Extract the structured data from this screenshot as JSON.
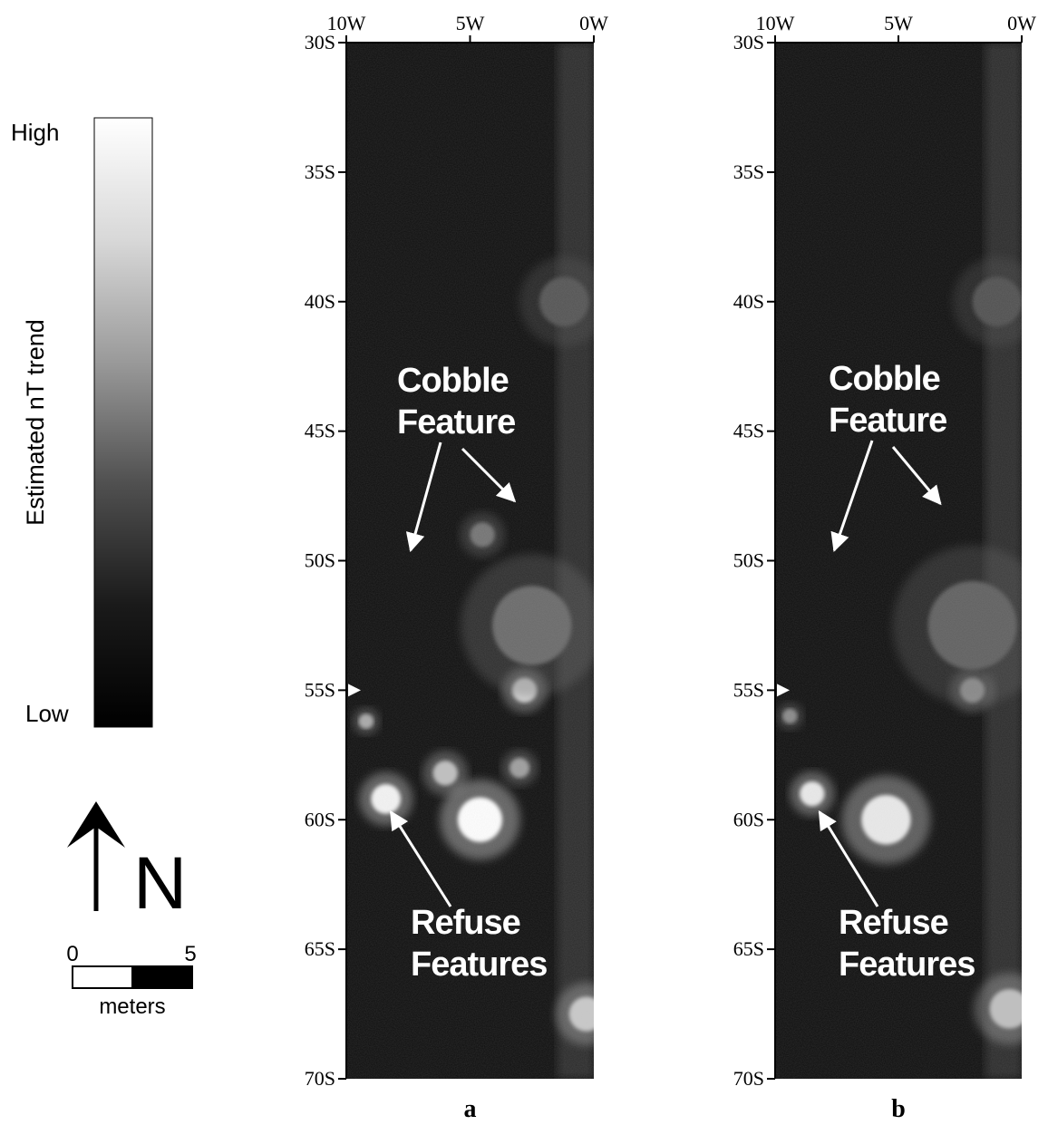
{
  "legend": {
    "high_label": "High",
    "low_label": "Low",
    "axis_label": "Estimated nT trend",
    "gradient_colors": [
      "#ffffff",
      "#d8d8d8",
      "#9a9a9a",
      "#505050",
      "#1a1a1a",
      "#000000"
    ]
  },
  "north_arrow": {
    "label": "N"
  },
  "scale_bar": {
    "start_label": "0",
    "end_label": "5",
    "units_label": "meters",
    "length_value": 5
  },
  "grid": {
    "x_ticks": [
      {
        "label": "10W",
        "value": 10
      },
      {
        "label": "5W",
        "value": 5
      },
      {
        "label": "0W",
        "value": 0
      }
    ],
    "y_ticks": [
      {
        "label": "30S",
        "value": 30
      },
      {
        "label": "35S",
        "value": 35
      },
      {
        "label": "40S",
        "value": 40
      },
      {
        "label": "45S",
        "value": 45
      },
      {
        "label": "50S",
        "value": 50
      },
      {
        "label": "55S",
        "value": 55
      },
      {
        "label": "60S",
        "value": 60
      },
      {
        "label": "65S",
        "value": 65
      },
      {
        "label": "70S",
        "value": 70
      }
    ],
    "x_range": [
      10,
      0
    ],
    "y_range": [
      30,
      70
    ]
  },
  "panels": [
    {
      "id": "a",
      "label": "a",
      "annotations": [
        {
          "text_lines": [
            "Cobble",
            "Feature"
          ],
          "arrow_targets": [
            [
              7.4,
              49.6
            ],
            [
              3.2,
              47.7
            ]
          ]
        },
        {
          "text_lines": [
            "Refuse",
            "Features"
          ],
          "arrow_targets": [
            [
              8.2,
              59.7
            ]
          ]
        }
      ],
      "anomalies": [
        {
          "x": 8.4,
          "y": 59.2,
          "r": 0.6,
          "intensity": 0.95
        },
        {
          "x": 4.6,
          "y": 60.0,
          "r": 0.9,
          "intensity": 1.0
        },
        {
          "x": 6.0,
          "y": 58.2,
          "r": 0.5,
          "intensity": 0.7
        },
        {
          "x": 2.8,
          "y": 55.0,
          "r": 0.5,
          "intensity": 0.8
        },
        {
          "x": 3.0,
          "y": 58.0,
          "r": 0.4,
          "intensity": 0.55
        },
        {
          "x": 0.3,
          "y": 67.5,
          "r": 0.7,
          "intensity": 0.75
        },
        {
          "x": 9.2,
          "y": 56.2,
          "r": 0.3,
          "intensity": 0.6
        },
        {
          "x": 4.5,
          "y": 49.0,
          "r": 0.5,
          "intensity": 0.35
        },
        {
          "x": 2.5,
          "y": 52.5,
          "r": 1.6,
          "intensity": 0.3
        },
        {
          "x": 1.2,
          "y": 40.0,
          "r": 1.0,
          "intensity": 0.2
        }
      ],
      "arrow_head_55S": true
    },
    {
      "id": "b",
      "label": "b",
      "annotations": [
        {
          "text_lines": [
            "Cobble",
            "Feature"
          ],
          "arrow_targets": [
            [
              7.6,
              49.6
            ],
            [
              3.3,
              47.8
            ]
          ]
        },
        {
          "text_lines": [
            "Refuse",
            "Features"
          ],
          "arrow_targets": [
            [
              8.2,
              59.7
            ]
          ]
        }
      ],
      "anomalies": [
        {
          "x": 8.5,
          "y": 59.0,
          "r": 0.5,
          "intensity": 0.9
        },
        {
          "x": 5.5,
          "y": 60.0,
          "r": 1.0,
          "intensity": 0.9
        },
        {
          "x": 2.0,
          "y": 55.0,
          "r": 0.5,
          "intensity": 0.55
        },
        {
          "x": 0.5,
          "y": 67.3,
          "r": 0.8,
          "intensity": 0.7
        },
        {
          "x": 9.4,
          "y": 56.0,
          "r": 0.3,
          "intensity": 0.45
        },
        {
          "x": 2.0,
          "y": 52.5,
          "r": 1.8,
          "intensity": 0.25
        },
        {
          "x": 1.0,
          "y": 40.0,
          "r": 1.0,
          "intensity": 0.18
        }
      ],
      "arrow_head_55S": true
    }
  ]
}
